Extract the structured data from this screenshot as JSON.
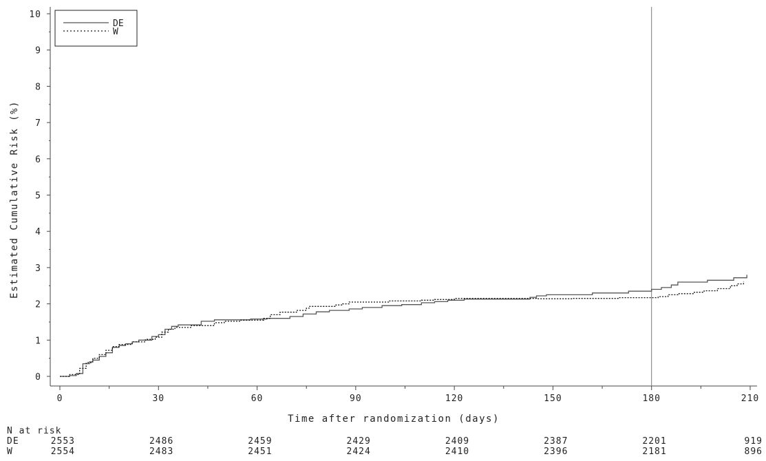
{
  "chart_data": {
    "type": "line",
    "title": "",
    "xlabel": "Time after randomization (days)",
    "ylabel": "Estimated Cumulative Risk (%)",
    "xlim": [
      0,
      210
    ],
    "ylim": [
      0,
      10
    ],
    "x_ticks": [
      0,
      30,
      60,
      90,
      120,
      150,
      180,
      210
    ],
    "y_ticks": [
      0,
      1,
      2,
      3,
      4,
      5,
      6,
      7,
      8,
      9,
      10
    ],
    "step": true,
    "reference_line_x": 180,
    "legend_position": "top-left",
    "series": [
      {
        "name": "DE",
        "style": "solid",
        "color": "#555555",
        "points": [
          [
            0,
            0
          ],
          [
            3,
            0.02
          ],
          [
            5,
            0.08
          ],
          [
            7,
            0.35
          ],
          [
            9,
            0.4
          ],
          [
            10,
            0.45
          ],
          [
            12,
            0.55
          ],
          [
            14,
            0.65
          ],
          [
            16,
            0.8
          ],
          [
            18,
            0.85
          ],
          [
            20,
            0.9
          ],
          [
            22,
            0.95
          ],
          [
            24,
            1.0
          ],
          [
            28,
            1.1
          ],
          [
            30,
            1.15
          ],
          [
            32,
            1.3
          ],
          [
            34,
            1.38
          ],
          [
            36,
            1.42
          ],
          [
            43,
            1.52
          ],
          [
            47,
            1.56
          ],
          [
            58,
            1.58
          ],
          [
            63,
            1.6
          ],
          [
            70,
            1.65
          ],
          [
            74,
            1.72
          ],
          [
            78,
            1.78
          ],
          [
            82,
            1.82
          ],
          [
            88,
            1.86
          ],
          [
            92,
            1.9
          ],
          [
            98,
            1.95
          ],
          [
            104,
            1.98
          ],
          [
            110,
            2.03
          ],
          [
            114,
            2.06
          ],
          [
            118,
            2.1
          ],
          [
            123,
            2.13
          ],
          [
            143,
            2.18
          ],
          [
            145,
            2.22
          ],
          [
            148,
            2.25
          ],
          [
            162,
            2.3
          ],
          [
            173,
            2.35
          ],
          [
            180,
            2.4
          ],
          [
            183,
            2.45
          ],
          [
            186,
            2.52
          ],
          [
            188,
            2.6
          ],
          [
            197,
            2.65
          ],
          [
            205,
            2.72
          ],
          [
            209,
            2.8
          ]
        ]
      },
      {
        "name": "W",
        "style": "dotted",
        "color": "#111111",
        "points": [
          [
            0,
            0
          ],
          [
            3,
            0.05
          ],
          [
            6,
            0.22
          ],
          [
            8,
            0.38
          ],
          [
            10,
            0.5
          ],
          [
            12,
            0.6
          ],
          [
            14,
            0.72
          ],
          [
            16,
            0.82
          ],
          [
            18,
            0.88
          ],
          [
            22,
            0.95
          ],
          [
            26,
            1.02
          ],
          [
            29,
            1.08
          ],
          [
            31,
            1.22
          ],
          [
            33,
            1.3
          ],
          [
            35,
            1.35
          ],
          [
            40,
            1.4
          ],
          [
            47,
            1.48
          ],
          [
            50,
            1.52
          ],
          [
            55,
            1.55
          ],
          [
            62,
            1.6
          ],
          [
            64,
            1.7
          ],
          [
            67,
            1.77
          ],
          [
            72,
            1.82
          ],
          [
            75,
            1.88
          ],
          [
            76,
            1.93
          ],
          [
            84,
            1.97
          ],
          [
            86,
            2.0
          ],
          [
            88,
            2.05
          ],
          [
            100,
            2.08
          ],
          [
            110,
            2.1
          ],
          [
            114,
            2.12
          ],
          [
            120,
            2.15
          ],
          [
            125,
            2.15
          ],
          [
            142,
            2.15
          ],
          [
            145,
            2.14
          ],
          [
            156,
            2.15
          ],
          [
            170,
            2.17
          ],
          [
            182,
            2.2
          ],
          [
            185,
            2.25
          ],
          [
            188,
            2.28
          ],
          [
            193,
            2.32
          ],
          [
            196,
            2.36
          ],
          [
            200,
            2.42
          ],
          [
            204,
            2.5
          ],
          [
            206,
            2.55
          ],
          [
            208,
            2.62
          ]
        ]
      }
    ],
    "risk_table": {
      "title": "N at risk",
      "times": [
        0,
        30,
        60,
        90,
        120,
        150,
        180,
        210
      ],
      "rows": [
        {
          "label": "DE",
          "values": [
            "2553",
            "2486",
            "2459",
            "2429",
            "2409",
            "2387",
            "2201",
            "919"
          ]
        },
        {
          "label": "W",
          "values": [
            "2554",
            "2483",
            "2451",
            "2424",
            "2410",
            "2396",
            "2181",
            "896"
          ]
        }
      ]
    }
  }
}
